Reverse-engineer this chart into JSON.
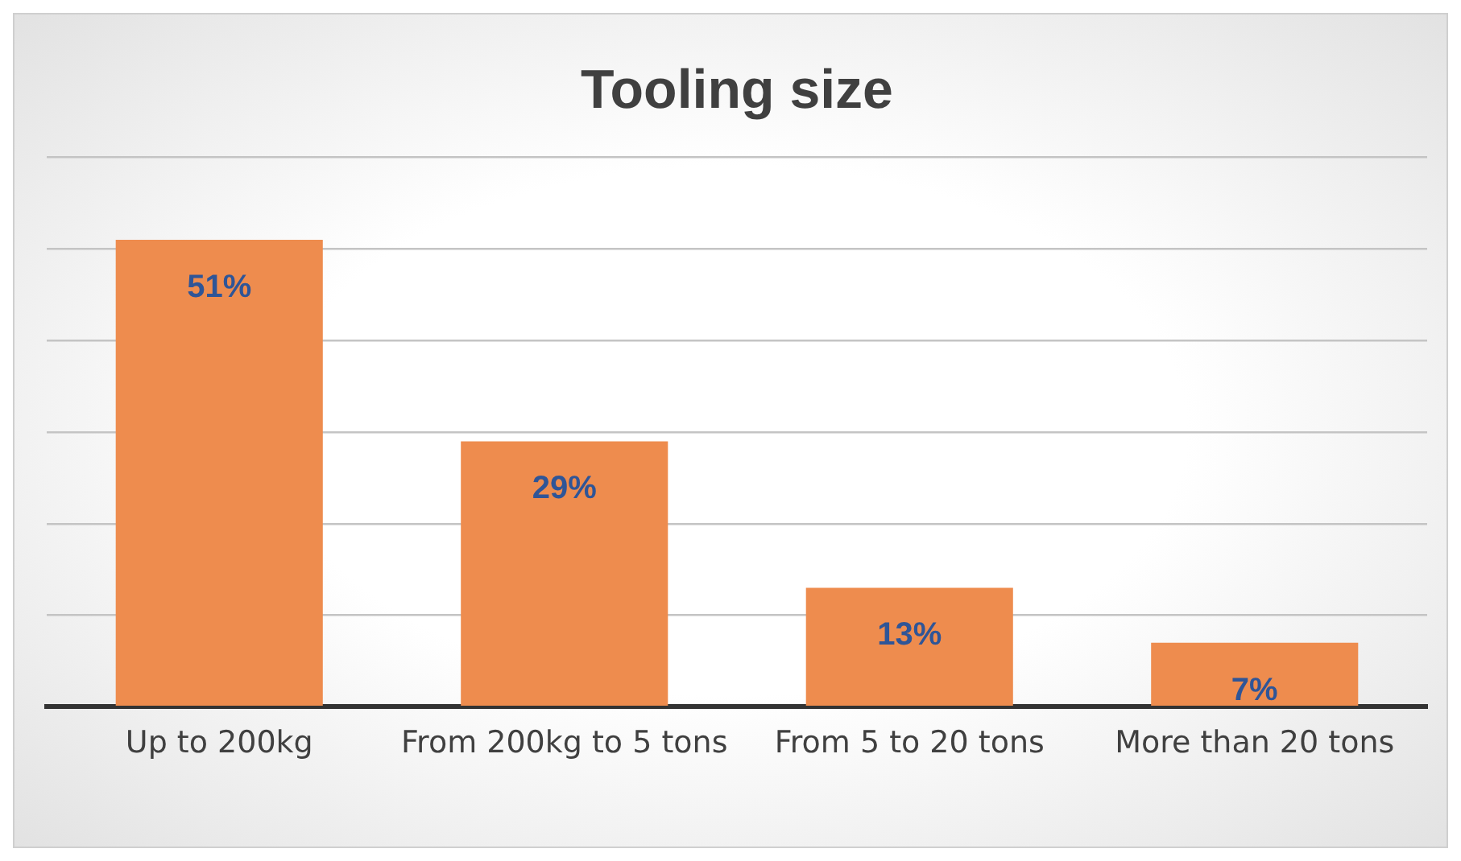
{
  "chart_data": {
    "type": "bar",
    "title": "Tooling size",
    "categories": [
      "Up to 200kg",
      "From 200kg to 5 tons",
      "From 5 to 20 tons",
      "More than 20 tons"
    ],
    "values": [
      51,
      29,
      13,
      7
    ],
    "value_labels": [
      "51%",
      "29%",
      "13%",
      "7%"
    ],
    "color": "#ee8c4e",
    "grid": "y",
    "tick_labels": "x",
    "legend": false
  }
}
